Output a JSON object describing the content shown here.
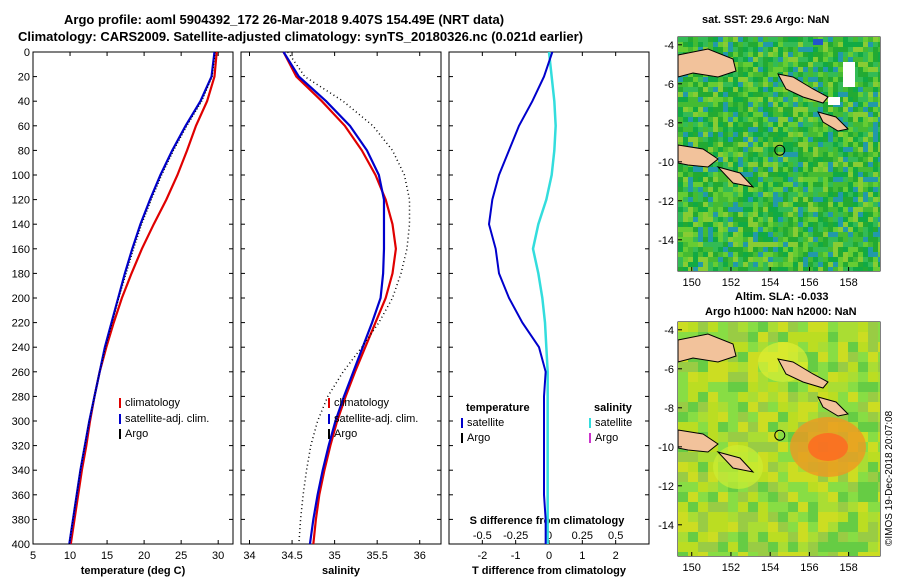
{
  "header": {
    "line1": "Argo profile: aoml 5904392_172 26-Mar-2018 9.407S 154.49E (NRT data)",
    "line2": "Climatology: CARS2009. Satellite-adjusted climatology: synTS_20180326.nc (0.021d earlier)"
  },
  "maps": {
    "top_title": "sat. SST: 29.6 Argo: NaN",
    "bottom_title1": "Altim. SLA: -0.033",
    "bottom_title2": "Argo h1000: NaN h2000: NaN",
    "credit": "©IMOS 19-Dec-2018 20:07:08",
    "lat_ticks": [
      "-4",
      "-6",
      "-8",
      "-10",
      "-12",
      "-14"
    ],
    "lon_ticks": [
      "150",
      "152",
      "154",
      "156",
      "158"
    ]
  },
  "colors": {
    "climatology": "#e00000",
    "satellite": "#0000cc",
    "argo": "#000000",
    "sal_satellite": "#33dddd",
    "sal_argo": "#cc33cc",
    "land": "#f2c29b"
  },
  "chart_data": [
    {
      "type": "line",
      "panel": "temperature",
      "xlabel": "temperature (deg C)",
      "ylabel": "",
      "xlim": [
        5,
        32
      ],
      "ylim": [
        400,
        0
      ],
      "x_ticks": [
        5,
        10,
        15,
        20,
        25,
        30
      ],
      "y_ticks": [
        0,
        20,
        40,
        60,
        80,
        100,
        120,
        140,
        160,
        180,
        200,
        220,
        240,
        260,
        280,
        300,
        320,
        340,
        360,
        380,
        400
      ],
      "depth": [
        0,
        20,
        40,
        60,
        80,
        100,
        120,
        140,
        160,
        180,
        200,
        220,
        240,
        260,
        280,
        300,
        320,
        340,
        360,
        380,
        400
      ],
      "legend": [
        "climatology",
        "satellite-adj. clim.",
        "Argo"
      ],
      "series": [
        {
          "name": "climatology",
          "values": [
            29.8,
            29.5,
            28.5,
            27.0,
            25.8,
            24.5,
            23.0,
            21.3,
            19.7,
            18.3,
            17.0,
            15.9,
            14.9,
            14.0,
            13.3,
            12.7,
            12.2,
            11.6,
            11.1,
            10.6,
            10.1
          ]
        },
        {
          "name": "satellite-adj. clim.",
          "values": [
            29.5,
            29.1,
            27.6,
            25.6,
            23.8,
            22.2,
            20.8,
            19.5,
            18.4,
            17.4,
            16.5,
            15.6,
            14.7,
            14.0,
            13.3,
            12.6,
            12.0,
            11.4,
            10.9,
            10.4,
            9.9
          ]
        },
        {
          "name": "Argo",
          "values": [
            29.6,
            29.2,
            27.8,
            25.8,
            24.0,
            22.4,
            21.0,
            19.7,
            18.6,
            17.6,
            16.6,
            15.7,
            14.8,
            14.0,
            13.3,
            12.6,
            12.0,
            11.4,
            10.9,
            10.4,
            9.9
          ]
        }
      ]
    },
    {
      "type": "line",
      "panel": "salinity",
      "xlabel": "salinity",
      "xlim": [
        33.9,
        36.25
      ],
      "ylim": [
        400,
        0
      ],
      "x_ticks": [
        34,
        34.5,
        35,
        35.5,
        36
      ],
      "depth": [
        0,
        20,
        40,
        60,
        80,
        100,
        120,
        140,
        160,
        180,
        200,
        220,
        240,
        260,
        280,
        300,
        320,
        340,
        360,
        380,
        400
      ],
      "legend": [
        "climatology",
        "satellite-adj. clim.",
        "Argo"
      ],
      "series": [
        {
          "name": "climatology",
          "values": [
            34.4,
            34.55,
            34.85,
            35.12,
            35.32,
            35.48,
            35.6,
            35.68,
            35.72,
            35.68,
            35.6,
            35.48,
            35.36,
            35.24,
            35.13,
            35.03,
            34.95,
            34.88,
            34.82,
            34.78,
            34.75
          ]
        },
        {
          "name": "satellite-adj. clim.",
          "values": [
            34.4,
            34.58,
            34.9,
            35.18,
            35.38,
            35.52,
            35.58,
            35.58,
            35.58,
            35.57,
            35.54,
            35.44,
            35.33,
            35.22,
            35.11,
            35.01,
            34.93,
            34.86,
            34.8,
            34.75,
            34.71
          ]
        },
        {
          "name": "Argo",
          "values": [
            34.45,
            34.65,
            35.1,
            35.45,
            35.68,
            35.82,
            35.88,
            35.88,
            35.85,
            35.78,
            35.68,
            35.52,
            35.32,
            35.1,
            34.92,
            34.8,
            34.72,
            34.67,
            34.63,
            34.6,
            34.58
          ]
        }
      ]
    },
    {
      "type": "line",
      "panel": "difference",
      "xlabel": "T difference from climatology",
      "top_xlabel": "S difference from climatology",
      "xlim": [
        -3,
        3
      ],
      "s_xlim": [
        -0.75,
        0.75
      ],
      "ylim": [
        400,
        0
      ],
      "x_ticks": [
        -2,
        -1,
        0,
        1,
        2
      ],
      "x_tick_labels": [
        "-2",
        "-1",
        "0",
        "1",
        "2"
      ],
      "s_ticks": [
        -0.5,
        -0.25,
        0,
        0.25,
        0.5
      ],
      "s_tick_labels": [
        "-0.5",
        "-0.25",
        "0",
        "0.25",
        "0.5"
      ],
      "legend_left": {
        "header": "temperature",
        "items": [
          "satellite",
          "Argo"
        ]
      },
      "legend_right": {
        "header": "salinity",
        "items": [
          "satellite",
          "Argo"
        ]
      },
      "depth": [
        0,
        20,
        40,
        60,
        80,
        100,
        120,
        140,
        160,
        180,
        200,
        220,
        240,
        260,
        280,
        300,
        320,
        340,
        360,
        380,
        400
      ],
      "series": [
        {
          "name": "T satellite",
          "values": [
            0.1,
            -0.15,
            -0.5,
            -0.9,
            -1.2,
            -1.5,
            -1.7,
            -1.8,
            -1.6,
            -1.5,
            -1.2,
            -0.8,
            -0.3,
            -0.1,
            -0.15,
            -0.15,
            -0.15,
            -0.15,
            -0.15,
            -0.1,
            -0.1
          ]
        },
        {
          "name": "S satellite",
          "values": [
            0.0,
            0.02,
            0.04,
            0.05,
            0.04,
            0.02,
            -0.02,
            -0.08,
            -0.12,
            -0.08,
            -0.05,
            -0.03,
            -0.02,
            -0.01,
            -0.01,
            -0.01,
            -0.01,
            -0.01,
            -0.01,
            -0.01,
            -0.01
          ]
        }
      ]
    }
  ]
}
